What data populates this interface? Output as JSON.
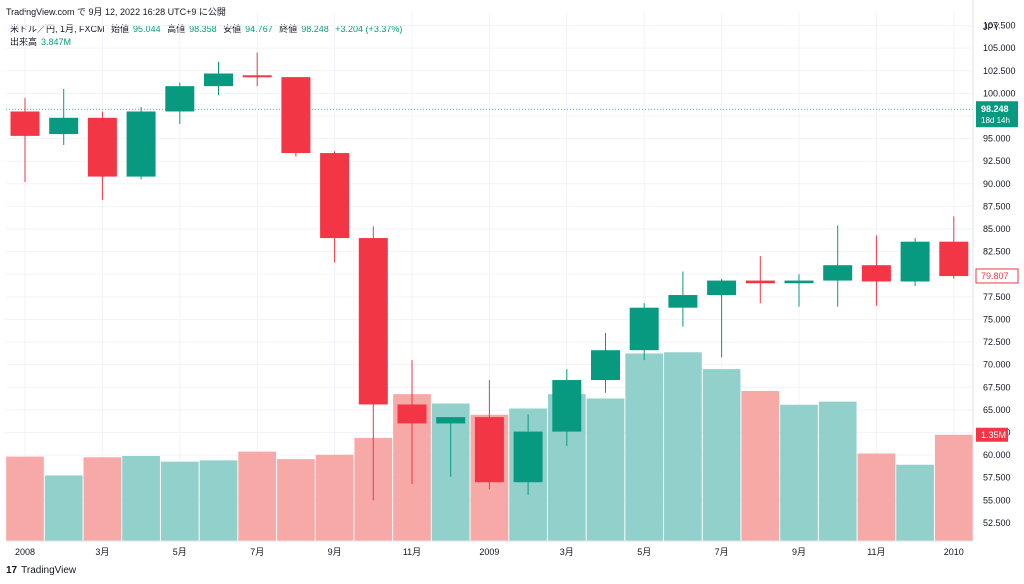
{
  "header": {
    "published": "TradingView.com で 9月 12, 2022 16:28 UTC+9 に公開"
  },
  "legend": {
    "symbol": "米ドル／円, 1月, FXCM",
    "open_label": "始値",
    "open_value": "95.044",
    "high_label": "高値",
    "high_value": "98.358",
    "low_label": "安値",
    "low_value": "94.767",
    "close_label": "終値",
    "close_value": "98.248",
    "change": "+3.204 (+3.37%)",
    "volume_label": "出来高",
    "volume_value": "3.847M"
  },
  "footer": {
    "brand": "TradingView",
    "logo": "17"
  },
  "colors": {
    "up": "#089981",
    "down": "#f23645",
    "vol_up": "#92d1cb",
    "vol_down": "#f7a9a7",
    "last_price_line": "#089981"
  },
  "chart_data": {
    "type": "candlestick",
    "currency": "JPY",
    "y_ticks": [
      "107.500",
      "105.000",
      "102.500",
      "100.000",
      "97.500",
      "95.000",
      "92.500",
      "90.000",
      "87.500",
      "85.000",
      "82.500",
      "80.000",
      "77.500",
      "75.000",
      "72.500",
      "70.000",
      "67.500",
      "65.000",
      "62.500",
      "60.000",
      "57.500",
      "55.000",
      "52.500"
    ],
    "ylim": [
      50.5,
      109.0
    ],
    "x_tick_labels": [
      {
        "index": 0,
        "label": "2008"
      },
      {
        "index": 2,
        "label": "3月"
      },
      {
        "index": 4,
        "label": "5月"
      },
      {
        "index": 6,
        "label": "7月"
      },
      {
        "index": 8,
        "label": "9月"
      },
      {
        "index": 10,
        "label": "11月"
      },
      {
        "index": 12,
        "label": "2009"
      },
      {
        "index": 14,
        "label": "3月"
      },
      {
        "index": 16,
        "label": "5月"
      },
      {
        "index": 18,
        "label": "7月"
      },
      {
        "index": 20,
        "label": "9月"
      },
      {
        "index": 22,
        "label": "11月"
      },
      {
        "index": 24,
        "label": "2010"
      }
    ],
    "candles": [
      {
        "o": 98.0,
        "h": 99.5,
        "l": 90.2,
        "c": 95.3
      },
      {
        "o": 95.5,
        "h": 100.5,
        "l": 94.3,
        "c": 97.3
      },
      {
        "o": 97.3,
        "h": 98.0,
        "l": 88.2,
        "c": 90.8
      },
      {
        "o": 90.8,
        "h": 98.5,
        "l": 90.5,
        "c": 98.0
      },
      {
        "o": 98.0,
        "h": 101.2,
        "l": 96.6,
        "c": 100.8
      },
      {
        "o": 100.8,
        "h": 103.5,
        "l": 99.8,
        "c": 102.2
      },
      {
        "o": 102.0,
        "h": 104.5,
        "l": 100.8,
        "c": 101.8
      },
      {
        "o": 101.8,
        "h": 101.8,
        "l": 93.0,
        "c": 93.4
      },
      {
        "o": 93.4,
        "h": 93.6,
        "l": 81.3,
        "c": 84.0
      },
      {
        "o": 84.0,
        "h": 85.3,
        "l": 55.0,
        "c": 65.6
      },
      {
        "o": 65.6,
        "h": 70.5,
        "l": 56.8,
        "c": 63.5
      },
      {
        "o": 63.5,
        "h": 64.2,
        "l": 57.6,
        "c": 64.2
      },
      {
        "o": 64.2,
        "h": 68.3,
        "l": 56.2,
        "c": 57.0
      },
      {
        "o": 57.0,
        "h": 64.5,
        "l": 55.6,
        "c": 62.6
      },
      {
        "o": 62.6,
        "h": 69.5,
        "l": 61.0,
        "c": 68.3
      },
      {
        "o": 68.3,
        "h": 73.5,
        "l": 66.9,
        "c": 71.6
      },
      {
        "o": 71.6,
        "h": 76.8,
        "l": 70.5,
        "c": 76.3
      },
      {
        "o": 76.3,
        "h": 80.3,
        "l": 74.2,
        "c": 77.7
      },
      {
        "o": 77.7,
        "h": 79.5,
        "l": 70.8,
        "c": 79.3
      },
      {
        "o": 79.3,
        "h": 82.0,
        "l": 76.8,
        "c": 79.0
      },
      {
        "o": 79.0,
        "h": 80.0,
        "l": 76.4,
        "c": 79.3
      },
      {
        "o": 79.3,
        "h": 85.4,
        "l": 76.4,
        "c": 81.0
      },
      {
        "o": 81.0,
        "h": 84.3,
        "l": 76.5,
        "c": 79.2
      },
      {
        "o": 79.2,
        "h": 84.0,
        "l": 78.7,
        "c": 83.6
      },
      {
        "o": 83.6,
        "h": 86.4,
        "l": 79.5,
        "c": 79.8
      }
    ],
    "volume": {
      "max_reference_m": 3.2,
      "values_m": [
        1.35,
        1.05,
        1.34,
        1.36,
        1.27,
        1.29,
        1.43,
        1.31,
        1.38,
        1.65,
        2.35,
        2.2,
        2.02,
        2.12,
        2.35,
        2.28,
        3.0,
        3.02,
        2.75,
        2.4,
        2.18,
        2.23,
        1.4,
        1.22,
        1.7
      ]
    },
    "last_price": {
      "value": 98.248,
      "label": "98.248",
      "countdown": "18d 14h"
    },
    "markers": [
      {
        "value": 79.807,
        "label": "79.807"
      }
    ],
    "volume_marker": {
      "label": "1.35M"
    }
  }
}
